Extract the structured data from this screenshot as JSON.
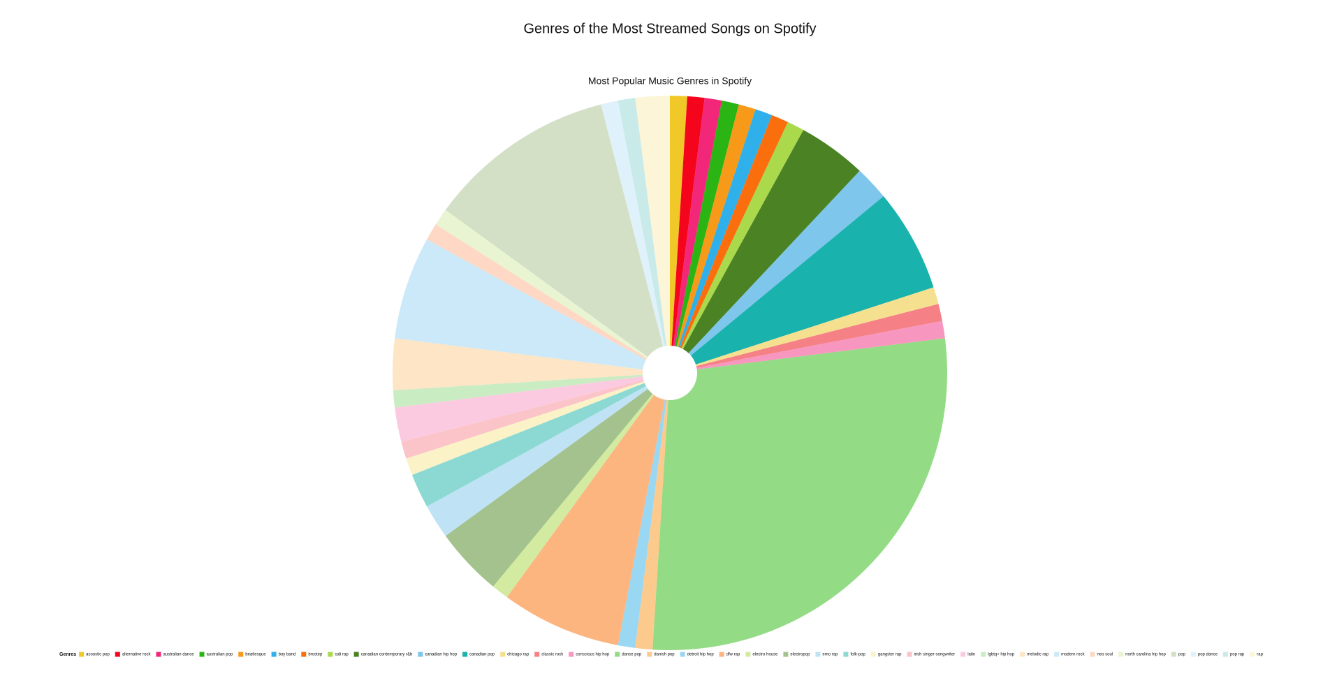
{
  "chart_data": {
    "type": "pie",
    "title": "Genres of the Most Streamed Songs on Spotify",
    "subtitle": "Most Popular Music Genres in Spotify",
    "legend_title": "Genres",
    "legend_position": "bottom",
    "donut": true,
    "categories": [
      "acoustic pop",
      "alternative rock",
      "australian dance",
      "australian pop",
      "beatlesque",
      "boy band",
      "brostep",
      "cali rap",
      "canadian contemporary r&b",
      "canadian hip hop",
      "canadian pop",
      "chicago rap",
      "classic rock",
      "conscious hip hop",
      "dance pop",
      "danish pop",
      "detroit hip hop",
      "dfw rap",
      "electro house",
      "electropop",
      "emo rap",
      "folk-pop",
      "gangster rap",
      "irish singer-songwriter",
      "latin",
      "lgbtq+ hip hop",
      "melodic rap",
      "modern rock",
      "neo soul",
      "north carolina hip hop",
      "pop",
      "pop dance",
      "pop rap",
      "rap"
    ],
    "values": [
      1,
      1,
      1,
      1,
      1,
      1,
      1,
      1,
      4,
      2,
      6,
      1,
      1,
      1,
      28,
      1,
      1,
      7,
      1,
      4,
      2,
      2,
      1,
      1,
      2,
      1,
      3,
      6,
      1,
      1,
      11,
      1,
      1,
      2
    ],
    "colors": [
      "#f0c929",
      "#f5051b",
      "#f2277a",
      "#2ab515",
      "#f79a1a",
      "#2fb0ea",
      "#fb6e0e",
      "#aad94c",
      "#4a8224",
      "#7ec6ec",
      "#19b2ad",
      "#f5e08f",
      "#f58085",
      "#f796be",
      "#93dc85",
      "#fcca8c",
      "#9ad7f3",
      "#fdb580",
      "#d2eba0",
      "#a4c28e",
      "#bfe3f5",
      "#8bd9d2",
      "#fbf2c7",
      "#fbc4c8",
      "#fccae0",
      "#c9ecc2",
      "#fde5c6",
      "#cbe9f9",
      "#fed8c4",
      "#e9f5d2",
      "#d3e0c6",
      "#dff1fa",
      "#c8eae8",
      "#fcf5d8"
    ]
  }
}
